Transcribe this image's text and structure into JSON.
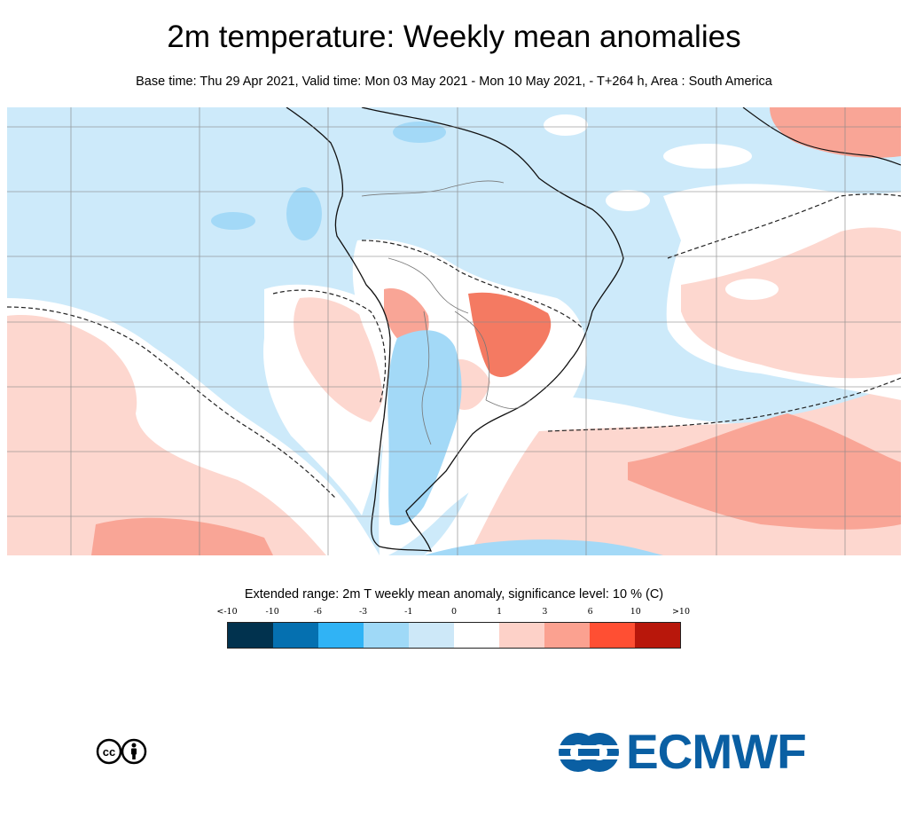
{
  "title": "2m temperature: Weekly mean anomalies",
  "subtitle": "Base time: Thu 29 Apr 2021, Valid time: Mon 03 May 2021 - Mon 10 May 2021, - T+264 h, Area : South America",
  "legend": {
    "title": "Extended range: 2m T weekly mean anomaly, significance level: 10 % (C)",
    "ticks": [
      "<-10",
      "-10",
      "-6",
      "-3",
      "-1",
      "0",
      "1",
      "3",
      "6",
      "10",
      ">10"
    ],
    "colors": [
      "#01324e",
      "#0570b0",
      "#30b3f5",
      "#9fd9f7",
      "#cde8f8",
      "#ffffff",
      "#fdd1c8",
      "#fba190",
      "#ff4f33",
      "#b8170b",
      "#5a0d05"
    ]
  },
  "map_colors": {
    "ocean_cold": "#cdeafa",
    "cold_moderate": "#a3d9f7",
    "neutral": "#ffffff",
    "warm_light": "#fdd7cf",
    "warm_moderate": "#f9a596",
    "warm_strong": "#f47a62"
  },
  "logos": {
    "license": "cc-by-icon",
    "org": "ECMWF"
  }
}
